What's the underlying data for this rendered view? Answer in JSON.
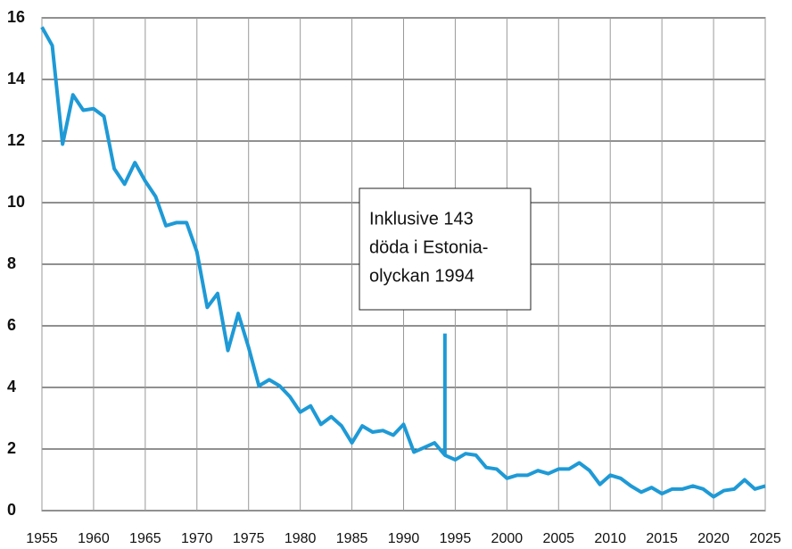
{
  "chart_data": {
    "type": "line",
    "x": [
      1955,
      1956,
      1957,
      1958,
      1959,
      1960,
      1961,
      1962,
      1963,
      1964,
      1965,
      1966,
      1967,
      1968,
      1969,
      1970,
      1971,
      1972,
      1973,
      1974,
      1975,
      1976,
      1977,
      1978,
      1979,
      1980,
      1981,
      1982,
      1983,
      1984,
      1985,
      1986,
      1987,
      1988,
      1989,
      1990,
      1991,
      1992,
      1993,
      1994,
      1995,
      1996,
      1997,
      1998,
      1999,
      2000,
      2001,
      2002,
      2003,
      2004,
      2005,
      2006,
      2007,
      2008,
      2009,
      2010,
      2011,
      2012,
      2013,
      2014,
      2015,
      2016,
      2017,
      2018,
      2019,
      2020,
      2021,
      2022,
      2023,
      2024,
      2025
    ],
    "series": [
      {
        "color": "#1e9ad6",
        "values": [
          15.7,
          15.1,
          11.9,
          13.5,
          13.0,
          13.05,
          12.8,
          11.1,
          10.6,
          11.3,
          10.7,
          10.2,
          9.25,
          9.35,
          9.35,
          8.4,
          6.6,
          7.05,
          5.2,
          6.4,
          5.3,
          4.05,
          4.25,
          4.05,
          3.7,
          3.2,
          3.4,
          2.8,
          3.05,
          2.75,
          2.2,
          2.75,
          2.55,
          2.6,
          2.45,
          2.8,
          1.9,
          2.05,
          2.2,
          1.8,
          1.65,
          1.85,
          1.8,
          1.4,
          1.35,
          1.05,
          1.15,
          1.15,
          1.3,
          1.2,
          1.35,
          1.35,
          1.55,
          1.3,
          0.85,
          1.15,
          1.05,
          0.8,
          0.6,
          0.75,
          0.55,
          0.7,
          0.7,
          0.8,
          0.7,
          0.45,
          0.65,
          0.7,
          1.0,
          0.7,
          0.8
        ]
      }
    ],
    "spike": {
      "x": 1994,
      "value": 5.75
    },
    "annotation": [
      "Inklusive 143",
      "döda i Estonia-",
      "olyckan 1994"
    ],
    "xlim": [
      1955,
      2025
    ],
    "xticks": [
      1955,
      1960,
      1965,
      1970,
      1975,
      1980,
      1985,
      1990,
      1995,
      2000,
      2005,
      2010,
      2015,
      2020,
      2025
    ],
    "ylim": [
      0,
      16
    ],
    "yticks": [
      0,
      2,
      4,
      6,
      8,
      10,
      12,
      14,
      16
    ],
    "grid": true
  }
}
